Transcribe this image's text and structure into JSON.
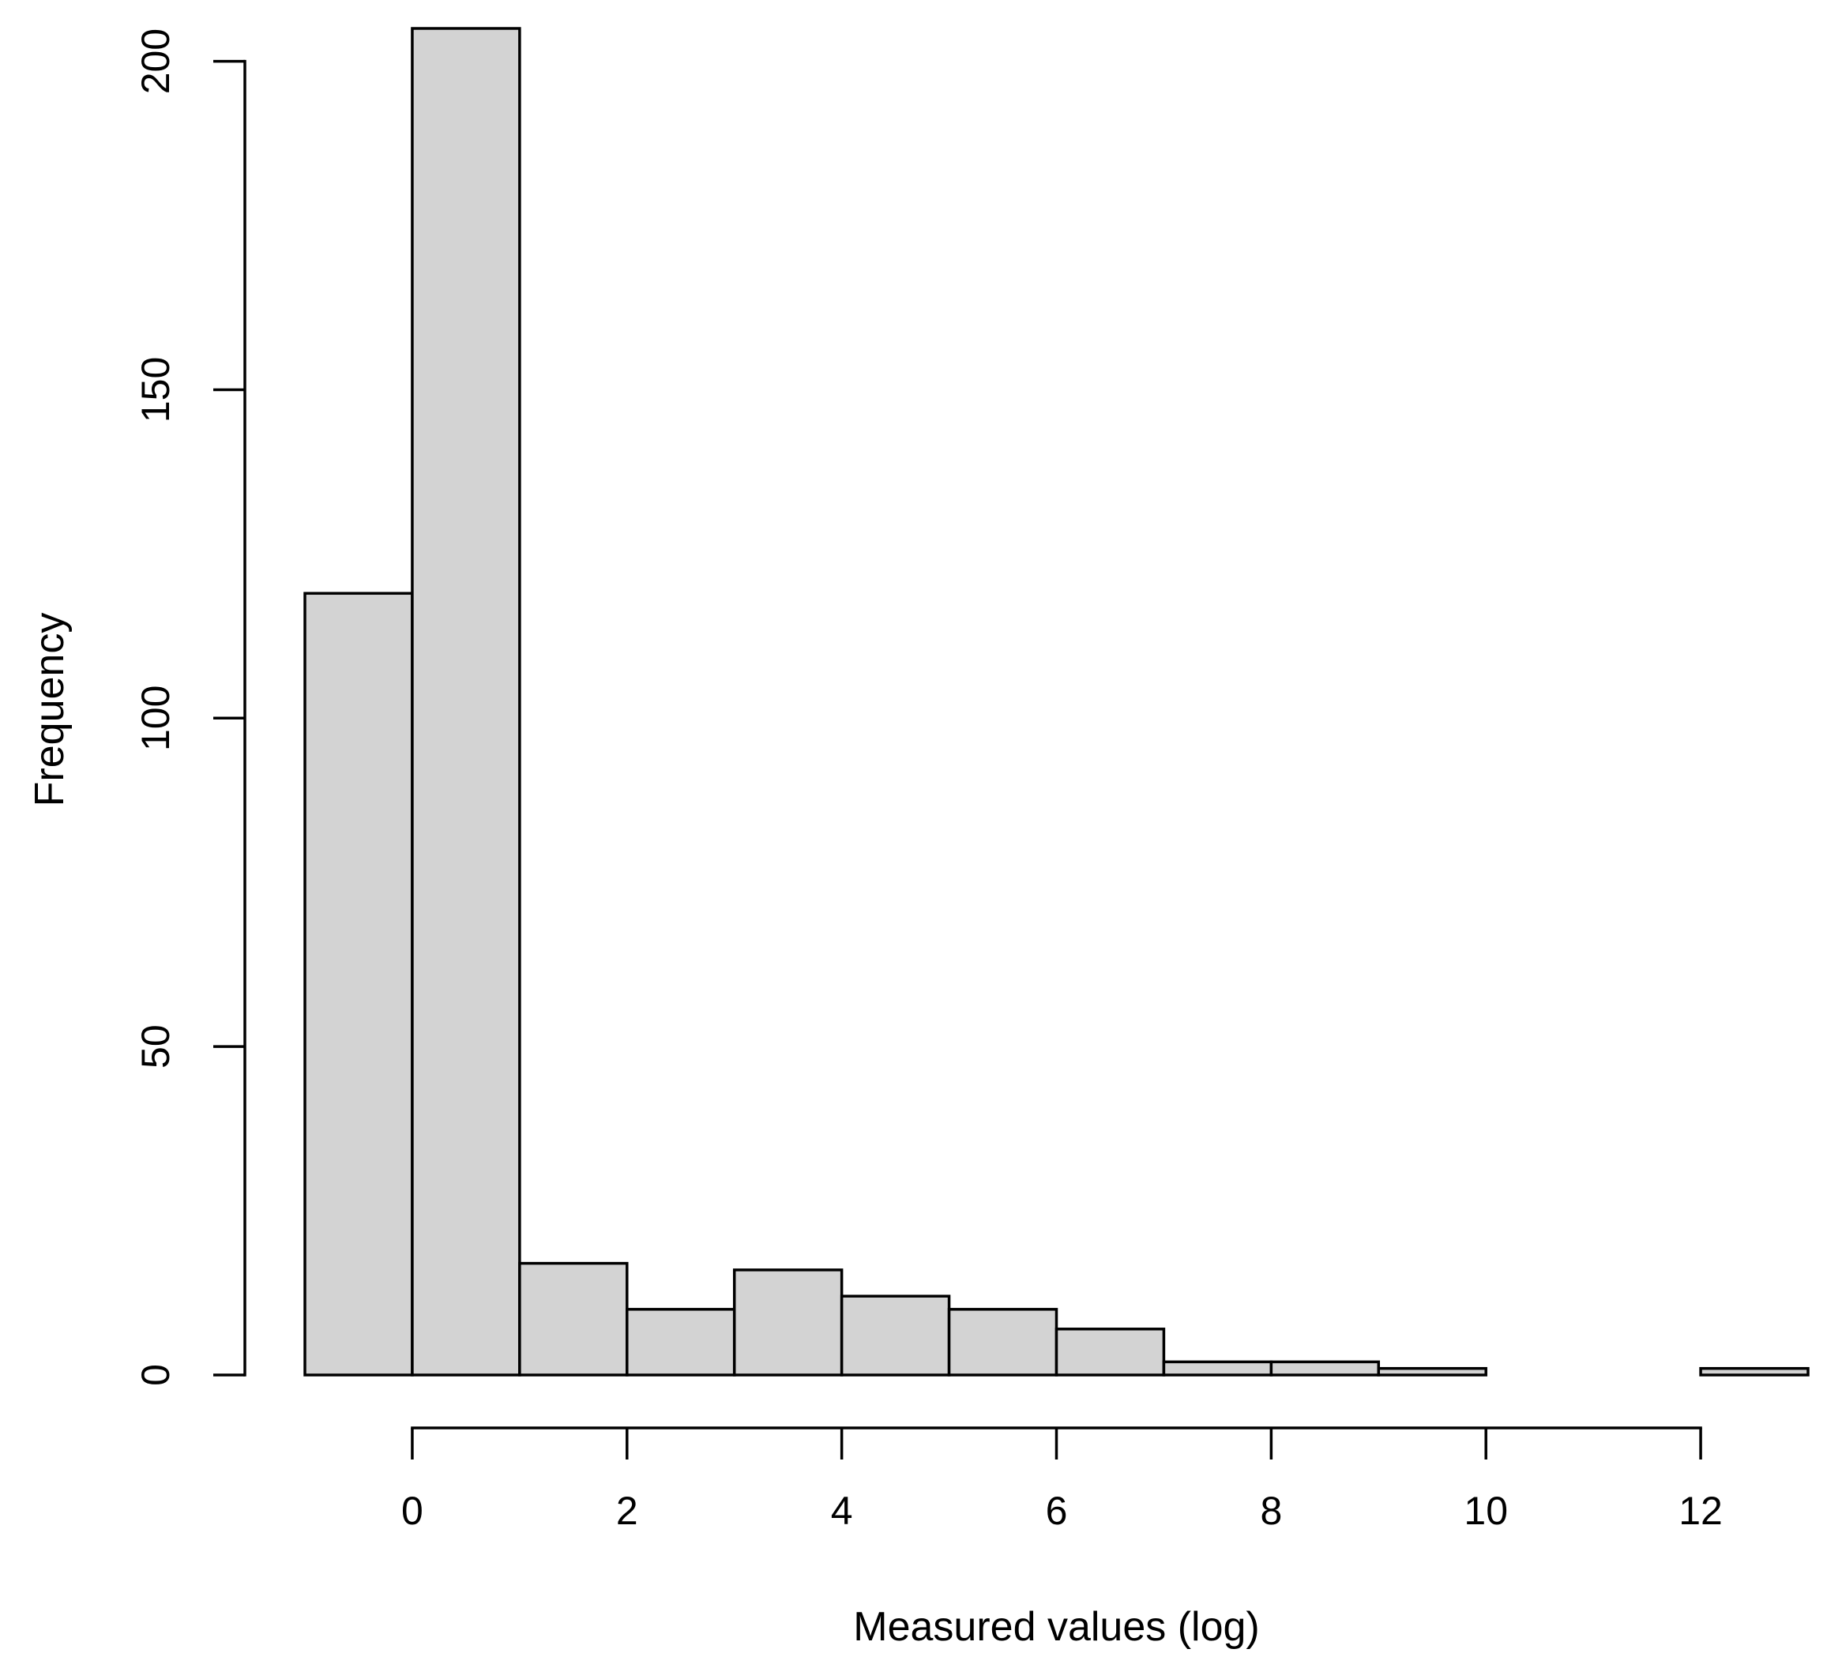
{
  "chart_data": {
    "type": "bar",
    "subtype": "histogram",
    "bins": [
      {
        "x0": -1,
        "x1": 0,
        "value": 119
      },
      {
        "x0": 0,
        "x1": 1,
        "value": 205
      },
      {
        "x0": 1,
        "x1": 2,
        "value": 17
      },
      {
        "x0": 2,
        "x1": 3,
        "value": 10
      },
      {
        "x0": 3,
        "x1": 4,
        "value": 16
      },
      {
        "x0": 4,
        "x1": 5,
        "value": 12
      },
      {
        "x0": 5,
        "x1": 6,
        "value": 10
      },
      {
        "x0": 6,
        "x1": 7,
        "value": 7
      },
      {
        "x0": 7,
        "x1": 8,
        "value": 2
      },
      {
        "x0": 8,
        "x1": 9,
        "value": 2
      },
      {
        "x0": 9,
        "x1": 10,
        "value": 1
      },
      {
        "x0": 10,
        "x1": 11,
        "value": 0
      },
      {
        "x0": 11,
        "x1": 12,
        "value": 0
      },
      {
        "x0": 12,
        "x1": 13,
        "value": 1
      }
    ],
    "xlabel": "Measured values (log)",
    "ylabel": "Frequency",
    "xlim": [
      -1,
      13
    ],
    "ylim": [
      0,
      205
    ],
    "x_axis_range": [
      0,
      12
    ],
    "y_axis_range": [
      0,
      200
    ],
    "xticks": [
      0,
      2,
      4,
      6,
      8,
      10,
      12
    ],
    "yticks": [
      0,
      50,
      100,
      150,
      200
    ],
    "grid": false,
    "bar_fill": "#d3d3d3",
    "bar_stroke": "#000000"
  }
}
